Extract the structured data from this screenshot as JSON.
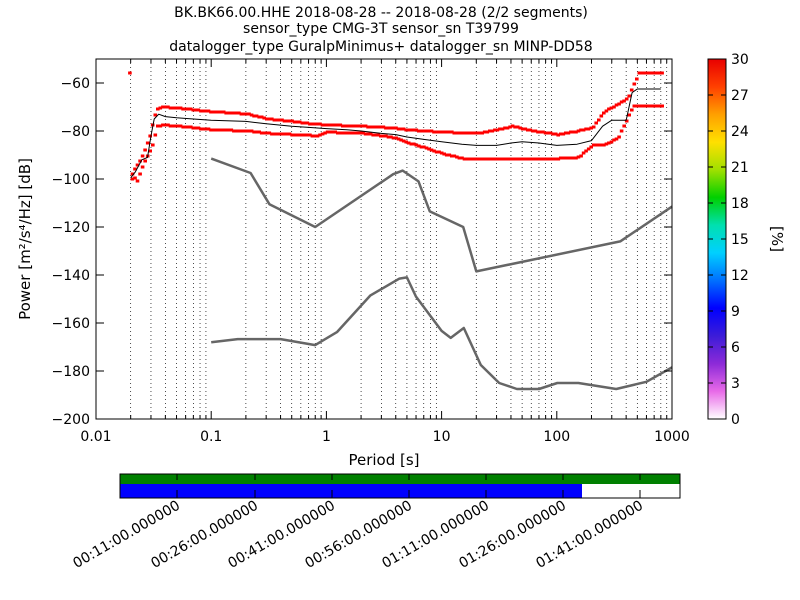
{
  "chart_data": {
    "type": "line",
    "title": [
      "BK.BK66.00.HHE   2018-08-28 -- 2018-08-28  (2/2 segments)",
      "sensor_type CMG-3T sensor_sn T39799",
      "datalogger_type GuralpMinimus+ datalogger_sn MINP-DD58"
    ],
    "xlabel": "Period [s]",
    "ylabel": "Power [m²/s⁴/Hz] [dB]",
    "x_scale": "log",
    "xlim": [
      0.01,
      1000
    ],
    "ylim": [
      -200,
      -50
    ],
    "x_ticks": [
      {
        "value": 0.01,
        "label": "0.01"
      },
      {
        "value": 0.1,
        "label": "0.1"
      },
      {
        "value": 1,
        "label": "1"
      },
      {
        "value": 10,
        "label": "10"
      },
      {
        "value": 100,
        "label": "100"
      },
      {
        "value": 1000,
        "label": "1000"
      }
    ],
    "y_ticks": [
      {
        "value": -200,
        "label": "−200"
      },
      {
        "value": -180,
        "label": "−180"
      },
      {
        "value": -160,
        "label": "−160"
      },
      {
        "value": -140,
        "label": "−140"
      },
      {
        "value": -120,
        "label": "−120"
      },
      {
        "value": -100,
        "label": "−100"
      },
      {
        "value": -80,
        "label": "−80"
      },
      {
        "value": -60,
        "label": "−60"
      }
    ],
    "grid": "vertical dotted at log minor ticks",
    "series": [
      {
        "kind": "noise-model",
        "color": "#666666",
        "points": [
          [
            0.1,
            -91.5
          ],
          [
            0.22,
            -97.5
          ],
          [
            0.32,
            -110.5
          ],
          [
            0.8,
            -120
          ],
          [
            3.8,
            -98
          ],
          [
            4.6,
            -96.5
          ],
          [
            6.3,
            -101
          ],
          [
            7.9,
            -113.5
          ],
          [
            15.4,
            -120
          ],
          [
            20,
            -138.5
          ],
          [
            354.8,
            -126
          ],
          [
            1000,
            -111.5
          ]
        ]
      },
      {
        "kind": "noise-model",
        "color": "#666666",
        "points": [
          [
            0.1,
            -168
          ],
          [
            0.17,
            -166.7
          ],
          [
            0.4,
            -166.7
          ],
          [
            0.8,
            -169.2
          ],
          [
            1.24,
            -163.7
          ],
          [
            2.4,
            -148.6
          ],
          [
            4.3,
            -141.5
          ],
          [
            5,
            -141
          ],
          [
            6,
            -149
          ],
          [
            10,
            -163.3
          ],
          [
            12,
            -166.2
          ],
          [
            15.6,
            -162.1
          ],
          [
            21.9,
            -177.5
          ],
          [
            31.6,
            -185
          ],
          [
            45,
            -187.5
          ],
          [
            70,
            -187.5
          ],
          [
            101,
            -185
          ],
          [
            154,
            -185
          ],
          [
            328,
            -187.5
          ],
          [
            600,
            -184.5
          ],
          [
            1000,
            -178.5
          ]
        ]
      },
      {
        "kind": "mode",
        "color": "#000000",
        "points": [
          [
            0.02,
            -99.5
          ],
          [
            0.022,
            -97
          ],
          [
            0.025,
            -92
          ],
          [
            0.028,
            -91
          ],
          [
            0.03,
            -82
          ],
          [
            0.032,
            -75
          ],
          [
            0.035,
            -73
          ],
          [
            0.04,
            -74
          ],
          [
            0.05,
            -74.5
          ],
          [
            0.07,
            -75
          ],
          [
            0.1,
            -75.5
          ],
          [
            0.2,
            -76
          ],
          [
            0.3,
            -77
          ],
          [
            0.5,
            -78
          ],
          [
            0.7,
            -78.5
          ],
          [
            1,
            -79
          ],
          [
            1.5,
            -79.5
          ],
          [
            2,
            -80
          ],
          [
            3,
            -81
          ],
          [
            4,
            -81.5
          ],
          [
            5,
            -82.5
          ],
          [
            7,
            -83.5
          ],
          [
            10,
            -84.5
          ],
          [
            15,
            -85.5
          ],
          [
            20,
            -86
          ],
          [
            30,
            -86
          ],
          [
            40,
            -85
          ],
          [
            50,
            -84.5
          ],
          [
            70,
            -85
          ],
          [
            100,
            -86
          ],
          [
            150,
            -85.5
          ],
          [
            200,
            -84
          ],
          [
            250,
            -78
          ],
          [
            300,
            -75.5
          ],
          [
            400,
            -75.5
          ],
          [
            450,
            -64
          ],
          [
            500,
            -62.5
          ],
          [
            800,
            -62.5
          ]
        ]
      }
    ],
    "upper_percentile": [
      [
        0.019,
        -104
      ],
      [
        0.021,
        -96
      ],
      [
        0.024,
        -91.5
      ],
      [
        0.026,
        -87.5
      ],
      [
        0.029,
        -81
      ],
      [
        0.031,
        -74
      ],
      [
        0.033,
        -71
      ],
      [
        0.037,
        -70
      ],
      [
        0.05,
        -70.5
      ],
      [
        0.1,
        -72
      ],
      [
        0.15,
        -72.5
      ],
      [
        0.2,
        -73
      ],
      [
        0.25,
        -74
      ],
      [
        0.3,
        -75
      ],
      [
        0.5,
        -76
      ],
      [
        0.7,
        -77
      ],
      [
        1,
        -77.5
      ],
      [
        2,
        -78
      ],
      [
        3,
        -78.5
      ],
      [
        4,
        -79
      ],
      [
        5,
        -79.5
      ],
      [
        7,
        -80
      ],
      [
        10,
        -80.5
      ],
      [
        20,
        -81
      ],
      [
        30,
        -79.5
      ],
      [
        40,
        -78
      ],
      [
        60,
        -80
      ],
      [
        100,
        -81.5
      ],
      [
        150,
        -80
      ],
      [
        200,
        -78.5
      ],
      [
        250,
        -72
      ],
      [
        300,
        -70
      ],
      [
        400,
        -66.5
      ],
      [
        500,
        -56
      ],
      [
        800,
        -56
      ]
    ],
    "lower_percentile": [
      [
        0.02,
        -98
      ],
      [
        0.022,
        -101
      ],
      [
        0.025,
        -94
      ],
      [
        0.03,
        -86
      ],
      [
        0.033,
        -78
      ],
      [
        0.037,
        -77.5
      ],
      [
        0.05,
        -78
      ],
      [
        0.1,
        -79.5
      ],
      [
        0.2,
        -80
      ],
      [
        0.3,
        -81
      ],
      [
        0.5,
        -81.5
      ],
      [
        0.8,
        -82
      ],
      [
        1,
        -80.5
      ],
      [
        2,
        -81
      ],
      [
        3,
        -82
      ],
      [
        4,
        -83
      ],
      [
        5,
        -85
      ],
      [
        7,
        -87
      ],
      [
        10,
        -89.5
      ],
      [
        15,
        -91.5
      ],
      [
        20,
        -91.5
      ],
      [
        40,
        -91.5
      ],
      [
        70,
        -91.5
      ],
      [
        100,
        -91.5
      ],
      [
        150,
        -91
      ],
      [
        200,
        -86
      ],
      [
        250,
        -86
      ],
      [
        330,
        -83
      ],
      [
        450,
        -69.5
      ],
      [
        800,
        -69.5
      ]
    ],
    "colorbar": {
      "label": "[%]",
      "min": 0,
      "max": 30,
      "ticks": [
        "0",
        "3",
        "6",
        "9",
        "12",
        "15",
        "18",
        "21",
        "24",
        "27",
        "30"
      ],
      "colors": [
        "#ffffff",
        "#e86ae8",
        "#8c2ad8",
        "#3c1cd8",
        "#0000ff",
        "#0070ff",
        "#00d0ff",
        "#00e0b0",
        "#00d000",
        "#a0e000",
        "#ffe000",
        "#ffa000",
        "#ff4000",
        "#e80000"
      ]
    },
    "timeline": {
      "tick_labels": [
        "00:11:00.000000",
        "00:26:00.000000",
        "00:41:00.000000",
        "00:56:00.000000",
        "01:11:00.000000",
        "01:26:00.000000",
        "01:41:00.000000"
      ],
      "data_fraction": 1.0,
      "psd_fraction": 0.825,
      "data_color": "#008000",
      "psd_color": "#0000ff"
    }
  }
}
